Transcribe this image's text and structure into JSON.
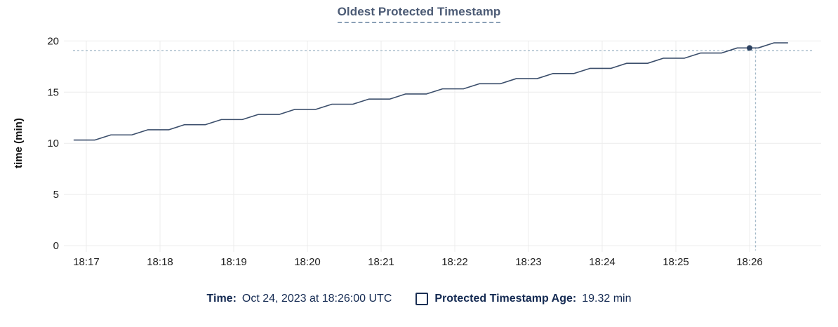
{
  "title": "Oldest Protected Timestamp",
  "colors": {
    "title": "#4c5b75",
    "title_underline": "#8aa0b6",
    "gridline": "#ececec",
    "axis_text": "#212121",
    "series_line": "#3b4e6b",
    "highlight_dot": "#2c4160",
    "crosshair": "#a3b9c8",
    "legend_text": "#142a52"
  },
  "legend": {
    "time_label": "Time:",
    "time_value": "Oct 24, 2023 at 18:26:00 UTC",
    "series_checkbox_state": "unchecked",
    "series_label": "Protected Timestamp Age:",
    "series_value": "19.32 min"
  },
  "chart_data": {
    "type": "line",
    "title": "Oldest Protected Timestamp",
    "xlabel": "",
    "ylabel": "time (min)",
    "ylim": [
      0,
      20
    ],
    "grid": true,
    "legend_position": "bottom",
    "y_ticks": [
      0,
      5,
      10,
      15,
      20
    ],
    "x_ticks": [
      "18:17",
      "18:18",
      "18:19",
      "18:20",
      "18:21",
      "18:22",
      "18:23",
      "18:24",
      "18:25",
      "18:26"
    ],
    "series": [
      {
        "name": "Protected Timestamp Age",
        "unit": "min",
        "points": [
          [
            "18:16:50",
            10.32
          ],
          [
            "18:17:07",
            10.32
          ],
          [
            "18:17:20",
            10.82
          ],
          [
            "18:17:37",
            10.82
          ],
          [
            "18:17:50",
            11.32
          ],
          [
            "18:18:07",
            11.32
          ],
          [
            "18:18:20",
            11.82
          ],
          [
            "18:18:37",
            11.82
          ],
          [
            "18:18:50",
            12.32
          ],
          [
            "18:19:07",
            12.32
          ],
          [
            "18:19:20",
            12.82
          ],
          [
            "18:19:37",
            12.82
          ],
          [
            "18:19:50",
            13.32
          ],
          [
            "18:20:07",
            13.32
          ],
          [
            "18:20:20",
            13.82
          ],
          [
            "18:20:37",
            13.82
          ],
          [
            "18:20:50",
            14.32
          ],
          [
            "18:21:07",
            14.32
          ],
          [
            "18:21:20",
            14.82
          ],
          [
            "18:21:37",
            14.82
          ],
          [
            "18:21:50",
            15.32
          ],
          [
            "18:22:07",
            15.32
          ],
          [
            "18:22:20",
            15.82
          ],
          [
            "18:22:37",
            15.82
          ],
          [
            "18:22:50",
            16.32
          ],
          [
            "18:23:07",
            16.32
          ],
          [
            "18:23:20",
            16.82
          ],
          [
            "18:23:37",
            16.82
          ],
          [
            "18:23:50",
            17.32
          ],
          [
            "18:24:07",
            17.32
          ],
          [
            "18:24:20",
            17.82
          ],
          [
            "18:24:37",
            17.82
          ],
          [
            "18:24:50",
            18.32
          ],
          [
            "18:25:07",
            18.32
          ],
          [
            "18:25:20",
            18.82
          ],
          [
            "18:25:37",
            18.82
          ],
          [
            "18:25:50",
            19.32
          ],
          [
            "18:26:07",
            19.32
          ],
          [
            "18:26:20",
            19.82
          ],
          [
            "18:26:31",
            19.82
          ]
        ]
      }
    ],
    "highlight_point": {
      "time": "18:26:00",
      "value": 19.32
    },
    "crosshair": {
      "time": "18:26:00",
      "value": 19.32
    }
  }
}
